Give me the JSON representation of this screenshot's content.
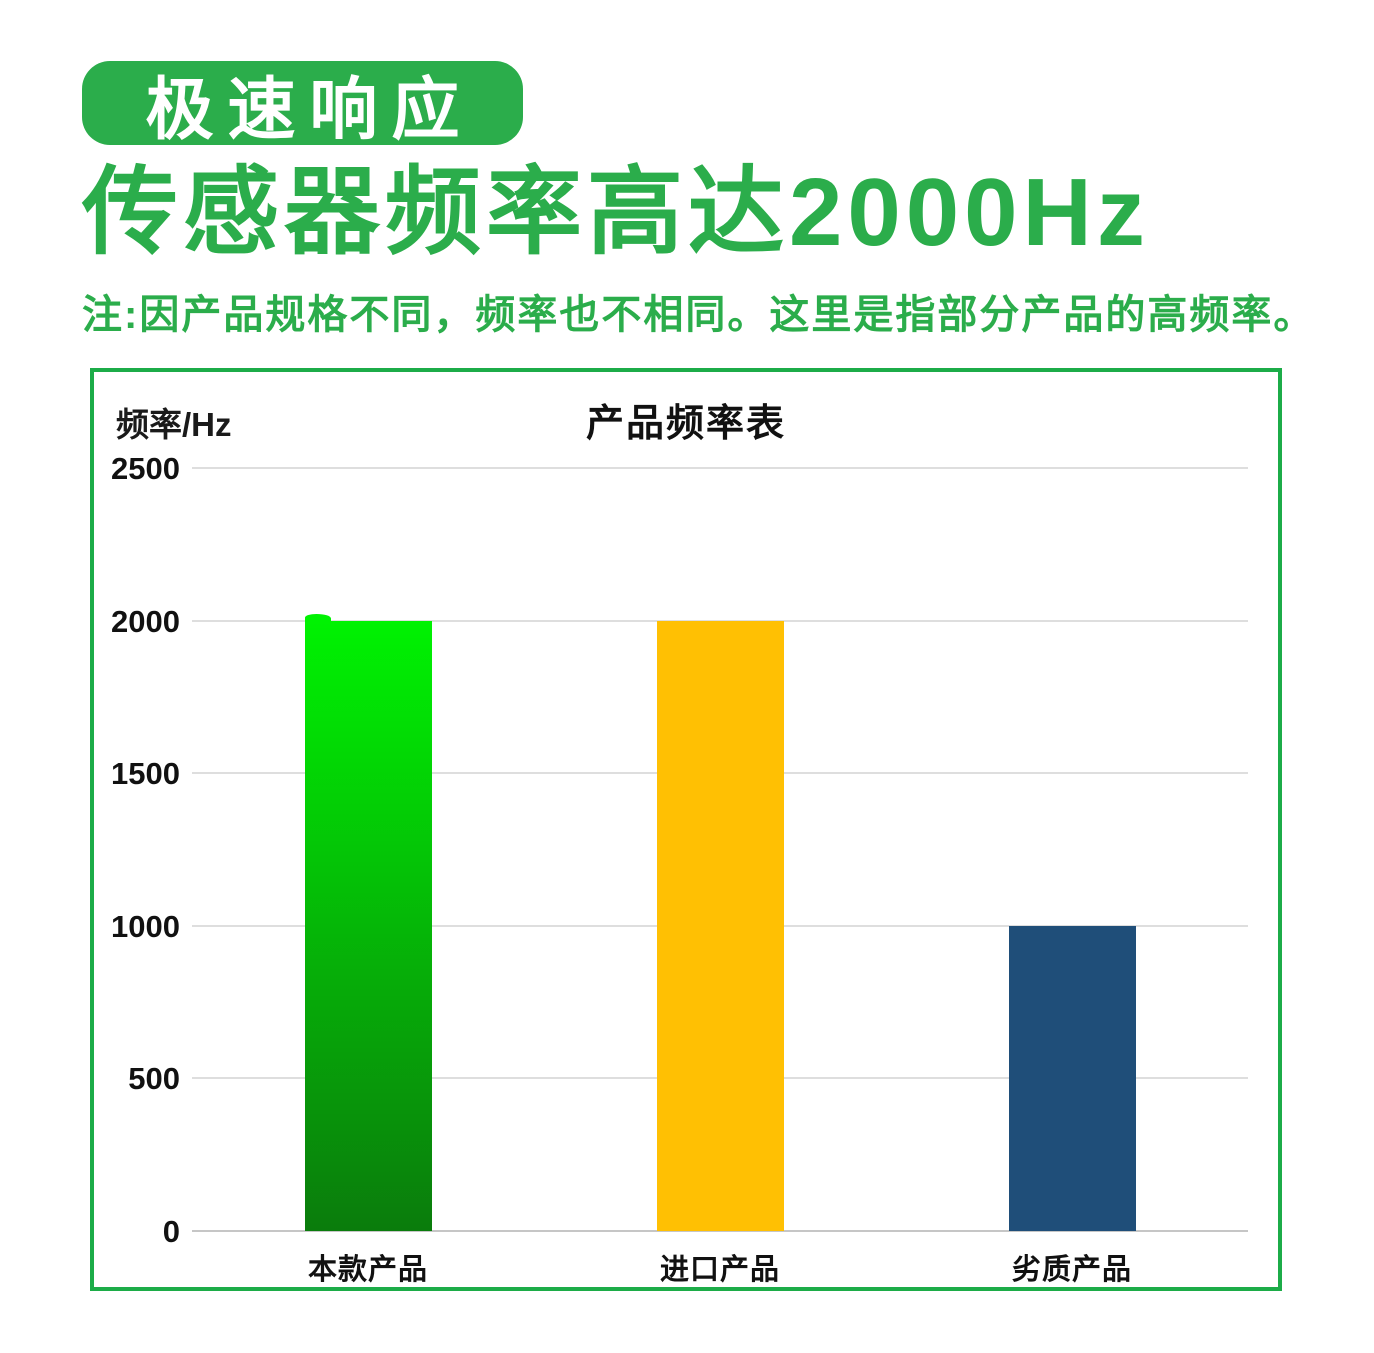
{
  "header": {
    "badge": "极速响应",
    "title": "传感器频率高达2000Hz",
    "note": "注:因产品规格不同，频率也不相同。这里是指部分产品的高频率。"
  },
  "colors": {
    "brand_green": "#2BAD4B",
    "chart_border": "#1CAC48",
    "gridline": "#DEDEDE",
    "axis_baseline": "#C6C6C6",
    "text_dark": "#111111",
    "bar_green_top": "#00F202",
    "bar_green_bottom": "#0A7C0C",
    "bar_yellow": "#FFC003",
    "bar_blue": "#1F4E79"
  },
  "chart_data": {
    "type": "bar",
    "title": "产品频率表",
    "ylabel": "频率/Hz",
    "xlabel": "",
    "categories": [
      "本款产品",
      "进口产品",
      "劣质产品"
    ],
    "values": [
      2000,
      2000,
      1000
    ],
    "ylim": [
      0,
      2500
    ],
    "yticks": [
      0,
      500,
      1000,
      1500,
      2000,
      2500
    ],
    "grid": true,
    "legend": false,
    "bar_styles": [
      {
        "type": "gradient",
        "from": "#00F202",
        "to": "#0A7C0C"
      },
      {
        "type": "solid",
        "color": "#FFC003"
      },
      {
        "type": "solid",
        "color": "#1F4E79"
      }
    ]
  }
}
